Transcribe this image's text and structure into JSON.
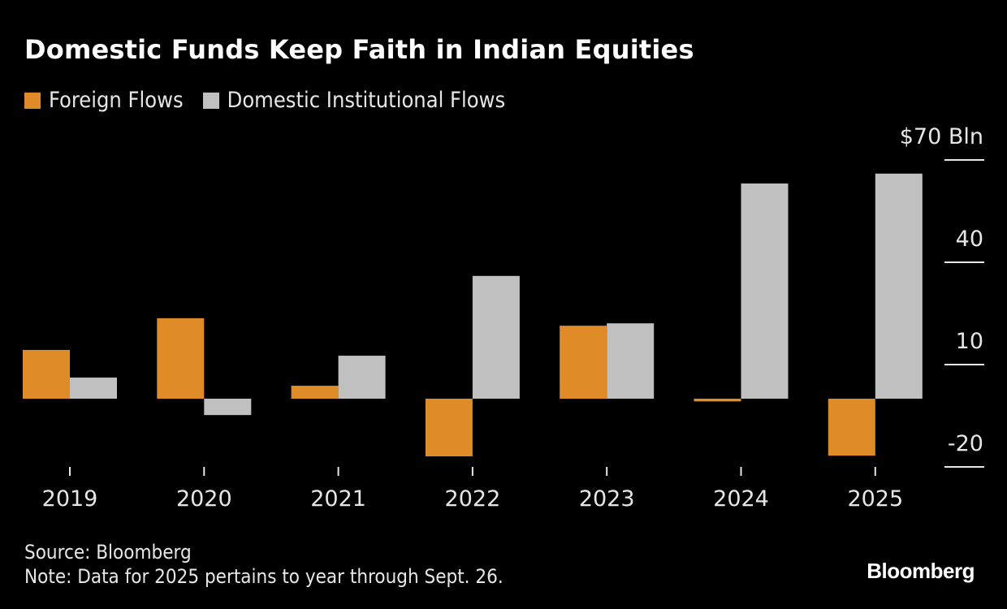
{
  "chart_data": {
    "type": "bar",
    "title": "Domestic Funds Keep Faith in Indian Equities",
    "categories": [
      "2019",
      "2020",
      "2021",
      "2022",
      "2023",
      "2024",
      "2025"
    ],
    "series": [
      {
        "name": "Foreign Flows",
        "color": "#df8b27",
        "values": [
          14.3,
          23.6,
          3.8,
          -16.9,
          21.4,
          -0.8,
          -16.7
        ]
      },
      {
        "name": "Domestic Institutional Flows",
        "color": "#c0c0c0",
        "values": [
          6.2,
          -4.8,
          12.6,
          36.0,
          22.1,
          63.1,
          66.0
        ]
      }
    ],
    "yticks": [
      70,
      40,
      10,
      -20
    ],
    "ytick_labels": [
      "$70 Bln",
      "40",
      "10",
      "-20"
    ],
    "ylim": [
      -20,
      70
    ],
    "xlabel": "",
    "ylabel": "",
    "legend": "top-left",
    "grid": false
  },
  "footer": {
    "source": "Source: Bloomberg",
    "note": "Note: Data for 2025 pertains to year through Sept. 26."
  },
  "brand": "Bloomberg"
}
